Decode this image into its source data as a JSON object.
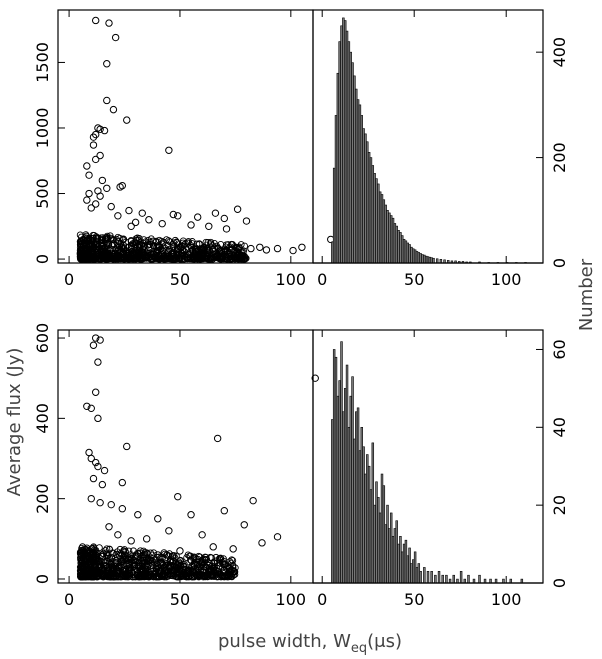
{
  "figure": {
    "ylabel_left": "Average flux (Jy)",
    "ylabel_right": "Number",
    "xlabel_main": "pulse width, W",
    "xlabel_sub": "eq",
    "xlabel_unit": "(μs)"
  },
  "chart_data": [
    {
      "type": "scatter",
      "panel": "top-left",
      "xlim": [
        -5,
        110
      ],
      "ylim": [
        -30,
        1900
      ],
      "xticks": [
        0,
        50,
        100
      ],
      "yticks": [
        0,
        500,
        1000,
        1500
      ],
      "marker": "open-circle",
      "points": [
        [
          12,
          1820
        ],
        [
          18,
          1800
        ],
        [
          21,
          1690
        ],
        [
          17,
          1490
        ],
        [
          17,
          1210
        ],
        [
          20,
          1140
        ],
        [
          26,
          1060
        ],
        [
          14,
          990
        ],
        [
          13,
          1000
        ],
        [
          12,
          950
        ],
        [
          16,
          980
        ],
        [
          11,
          930
        ],
        [
          11,
          870
        ],
        [
          45,
          830
        ],
        [
          14,
          790
        ],
        [
          8,
          710
        ],
        [
          12,
          760
        ],
        [
          9,
          640
        ],
        [
          15,
          600
        ],
        [
          24,
          560
        ],
        [
          23,
          550
        ],
        [
          13,
          520
        ],
        [
          17,
          540
        ],
        [
          9,
          500
        ],
        [
          8,
          450
        ],
        [
          14,
          480
        ],
        [
          12,
          420
        ],
        [
          10,
          390
        ],
        [
          19,
          400
        ],
        [
          27,
          370
        ],
        [
          33,
          350
        ],
        [
          47,
          340
        ],
        [
          66,
          350
        ],
        [
          76,
          380
        ],
        [
          49,
          330
        ],
        [
          58,
          320
        ],
        [
          70,
          310
        ],
        [
          80,
          290
        ],
        [
          36,
          300
        ],
        [
          22,
          330
        ],
        [
          30,
          280
        ],
        [
          42,
          270
        ],
        [
          55,
          260
        ],
        [
          63,
          250
        ],
        [
          71,
          230
        ],
        [
          28,
          250
        ],
        [
          86,
          90
        ],
        [
          94,
          80
        ],
        [
          89,
          70
        ],
        [
          82,
          80
        ],
        [
          105,
          90
        ],
        [
          101,
          65
        ],
        [
          118,
          150
        ]
      ],
      "dense_band": {
        "x_range": [
          5,
          80
        ],
        "y_range": [
          0,
          160
        ],
        "description": "dense cloud of points near y=0"
      }
    },
    {
      "type": "bar",
      "panel": "top-right",
      "xlim": [
        -5,
        120
      ],
      "ylim": [
        0,
        480
      ],
      "xticks": [
        0,
        50,
        100
      ],
      "yticks": [
        0,
        200,
        400
      ],
      "bin_width": 1,
      "bins_x": [
        5,
        6,
        7,
        8,
        9,
        10,
        11,
        12,
        13,
        14,
        15,
        16,
        17,
        18,
        19,
        20,
        21,
        22,
        23,
        24,
        25,
        26,
        27,
        28,
        29,
        30,
        31,
        32,
        33,
        34,
        35,
        36,
        37,
        38,
        39,
        40,
        41,
        42,
        43,
        44,
        45,
        46,
        47,
        48,
        49,
        50,
        51,
        52,
        53,
        54,
        55,
        56,
        57,
        58,
        59,
        60,
        62,
        64,
        66,
        68,
        70,
        72,
        74,
        76,
        78,
        80,
        85,
        90,
        95,
        100,
        105,
        110
      ],
      "values": [
        40,
        180,
        280,
        360,
        420,
        450,
        465,
        460,
        440,
        420,
        400,
        380,
        355,
        330,
        310,
        300,
        280,
        255,
        245,
        230,
        210,
        200,
        185,
        170,
        160,
        150,
        135,
        130,
        120,
        110,
        100,
        95,
        90,
        85,
        75,
        70,
        62,
        58,
        52,
        45,
        42,
        38,
        35,
        30,
        27,
        25,
        22,
        20,
        18,
        16,
        15,
        13,
        12,
        11,
        10,
        9,
        8,
        7,
        6,
        5,
        4,
        4,
        3,
        3,
        2,
        2,
        2,
        1,
        1,
        1,
        1,
        1
      ]
    },
    {
      "type": "scatter",
      "panel": "bottom-left",
      "xlim": [
        -5,
        110
      ],
      "ylim": [
        -10,
        620
      ],
      "xticks": [
        0,
        50,
        100
      ],
      "yticks": [
        0,
        200,
        400,
        600
      ],
      "marker": "open-circle",
      "points": [
        [
          12,
          600
        ],
        [
          14,
          595
        ],
        [
          11,
          582
        ],
        [
          13,
          540
        ],
        [
          111,
          500
        ],
        [
          12,
          465
        ],
        [
          8,
          430
        ],
        [
          10,
          425
        ],
        [
          13,
          400
        ],
        [
          9,
          315
        ],
        [
          10,
          300
        ],
        [
          12,
          290
        ],
        [
          13,
          280
        ],
        [
          16,
          270
        ],
        [
          26,
          330
        ],
        [
          67,
          350
        ],
        [
          11,
          250
        ],
        [
          15,
          235
        ],
        [
          24,
          240
        ],
        [
          10,
          200
        ],
        [
          14,
          190
        ],
        [
          19,
          185
        ],
        [
          24,
          175
        ],
        [
          31,
          160
        ],
        [
          40,
          150
        ],
        [
          49,
          205
        ],
        [
          55,
          160
        ],
        [
          70,
          170
        ],
        [
          83,
          195
        ],
        [
          79,
          135
        ],
        [
          87,
          90
        ],
        [
          94,
          105
        ],
        [
          60,
          110
        ],
        [
          45,
          120
        ],
        [
          35,
          100
        ],
        [
          28,
          95
        ],
        [
          22,
          110
        ],
        [
          18,
          130
        ],
        [
          65,
          80
        ],
        [
          74,
          75
        ],
        [
          50,
          70
        ],
        [
          40,
          60
        ]
      ],
      "dense_band": {
        "x_range": [
          5,
          75
        ],
        "y_range": [
          5,
          70
        ],
        "description": "dense cloud of points near y=0"
      }
    },
    {
      "type": "bar",
      "panel": "bottom-right",
      "xlim": [
        -5,
        120
      ],
      "ylim": [
        0,
        65
      ],
      "xticks": [
        0,
        50,
        100
      ],
      "yticks": [
        0,
        20,
        40,
        60
      ],
      "bin_width": 1,
      "bins_x": [
        5,
        6,
        7,
        8,
        9,
        10,
        11,
        12,
        13,
        14,
        15,
        16,
        17,
        18,
        19,
        20,
        21,
        22,
        23,
        24,
        25,
        26,
        27,
        28,
        29,
        30,
        31,
        32,
        33,
        34,
        35,
        36,
        37,
        38,
        39,
        40,
        41,
        42,
        43,
        44,
        45,
        46,
        47,
        48,
        49,
        50,
        51,
        52,
        53,
        55,
        57,
        59,
        61,
        63,
        65,
        67,
        69,
        71,
        73,
        75,
        77,
        79,
        82,
        85,
        88,
        91,
        94,
        98,
        102,
        108
      ],
      "values": [
        42,
        60,
        58,
        48,
        52,
        62,
        44,
        50,
        56,
        40,
        48,
        53,
        37,
        44,
        45,
        34,
        40,
        35,
        28,
        33,
        30,
        24,
        36,
        20,
        26,
        22,
        18,
        28,
        25,
        15,
        20,
        14,
        18,
        12,
        14,
        16,
        10,
        12,
        8,
        10,
        11,
        7,
        9,
        5,
        6,
        8,
        4,
        5,
        3,
        4,
        3,
        3,
        2,
        3,
        2,
        2,
        1,
        2,
        1,
        3,
        1,
        2,
        1,
        2,
        1,
        1,
        1,
        1,
        1,
        1
      ]
    }
  ]
}
